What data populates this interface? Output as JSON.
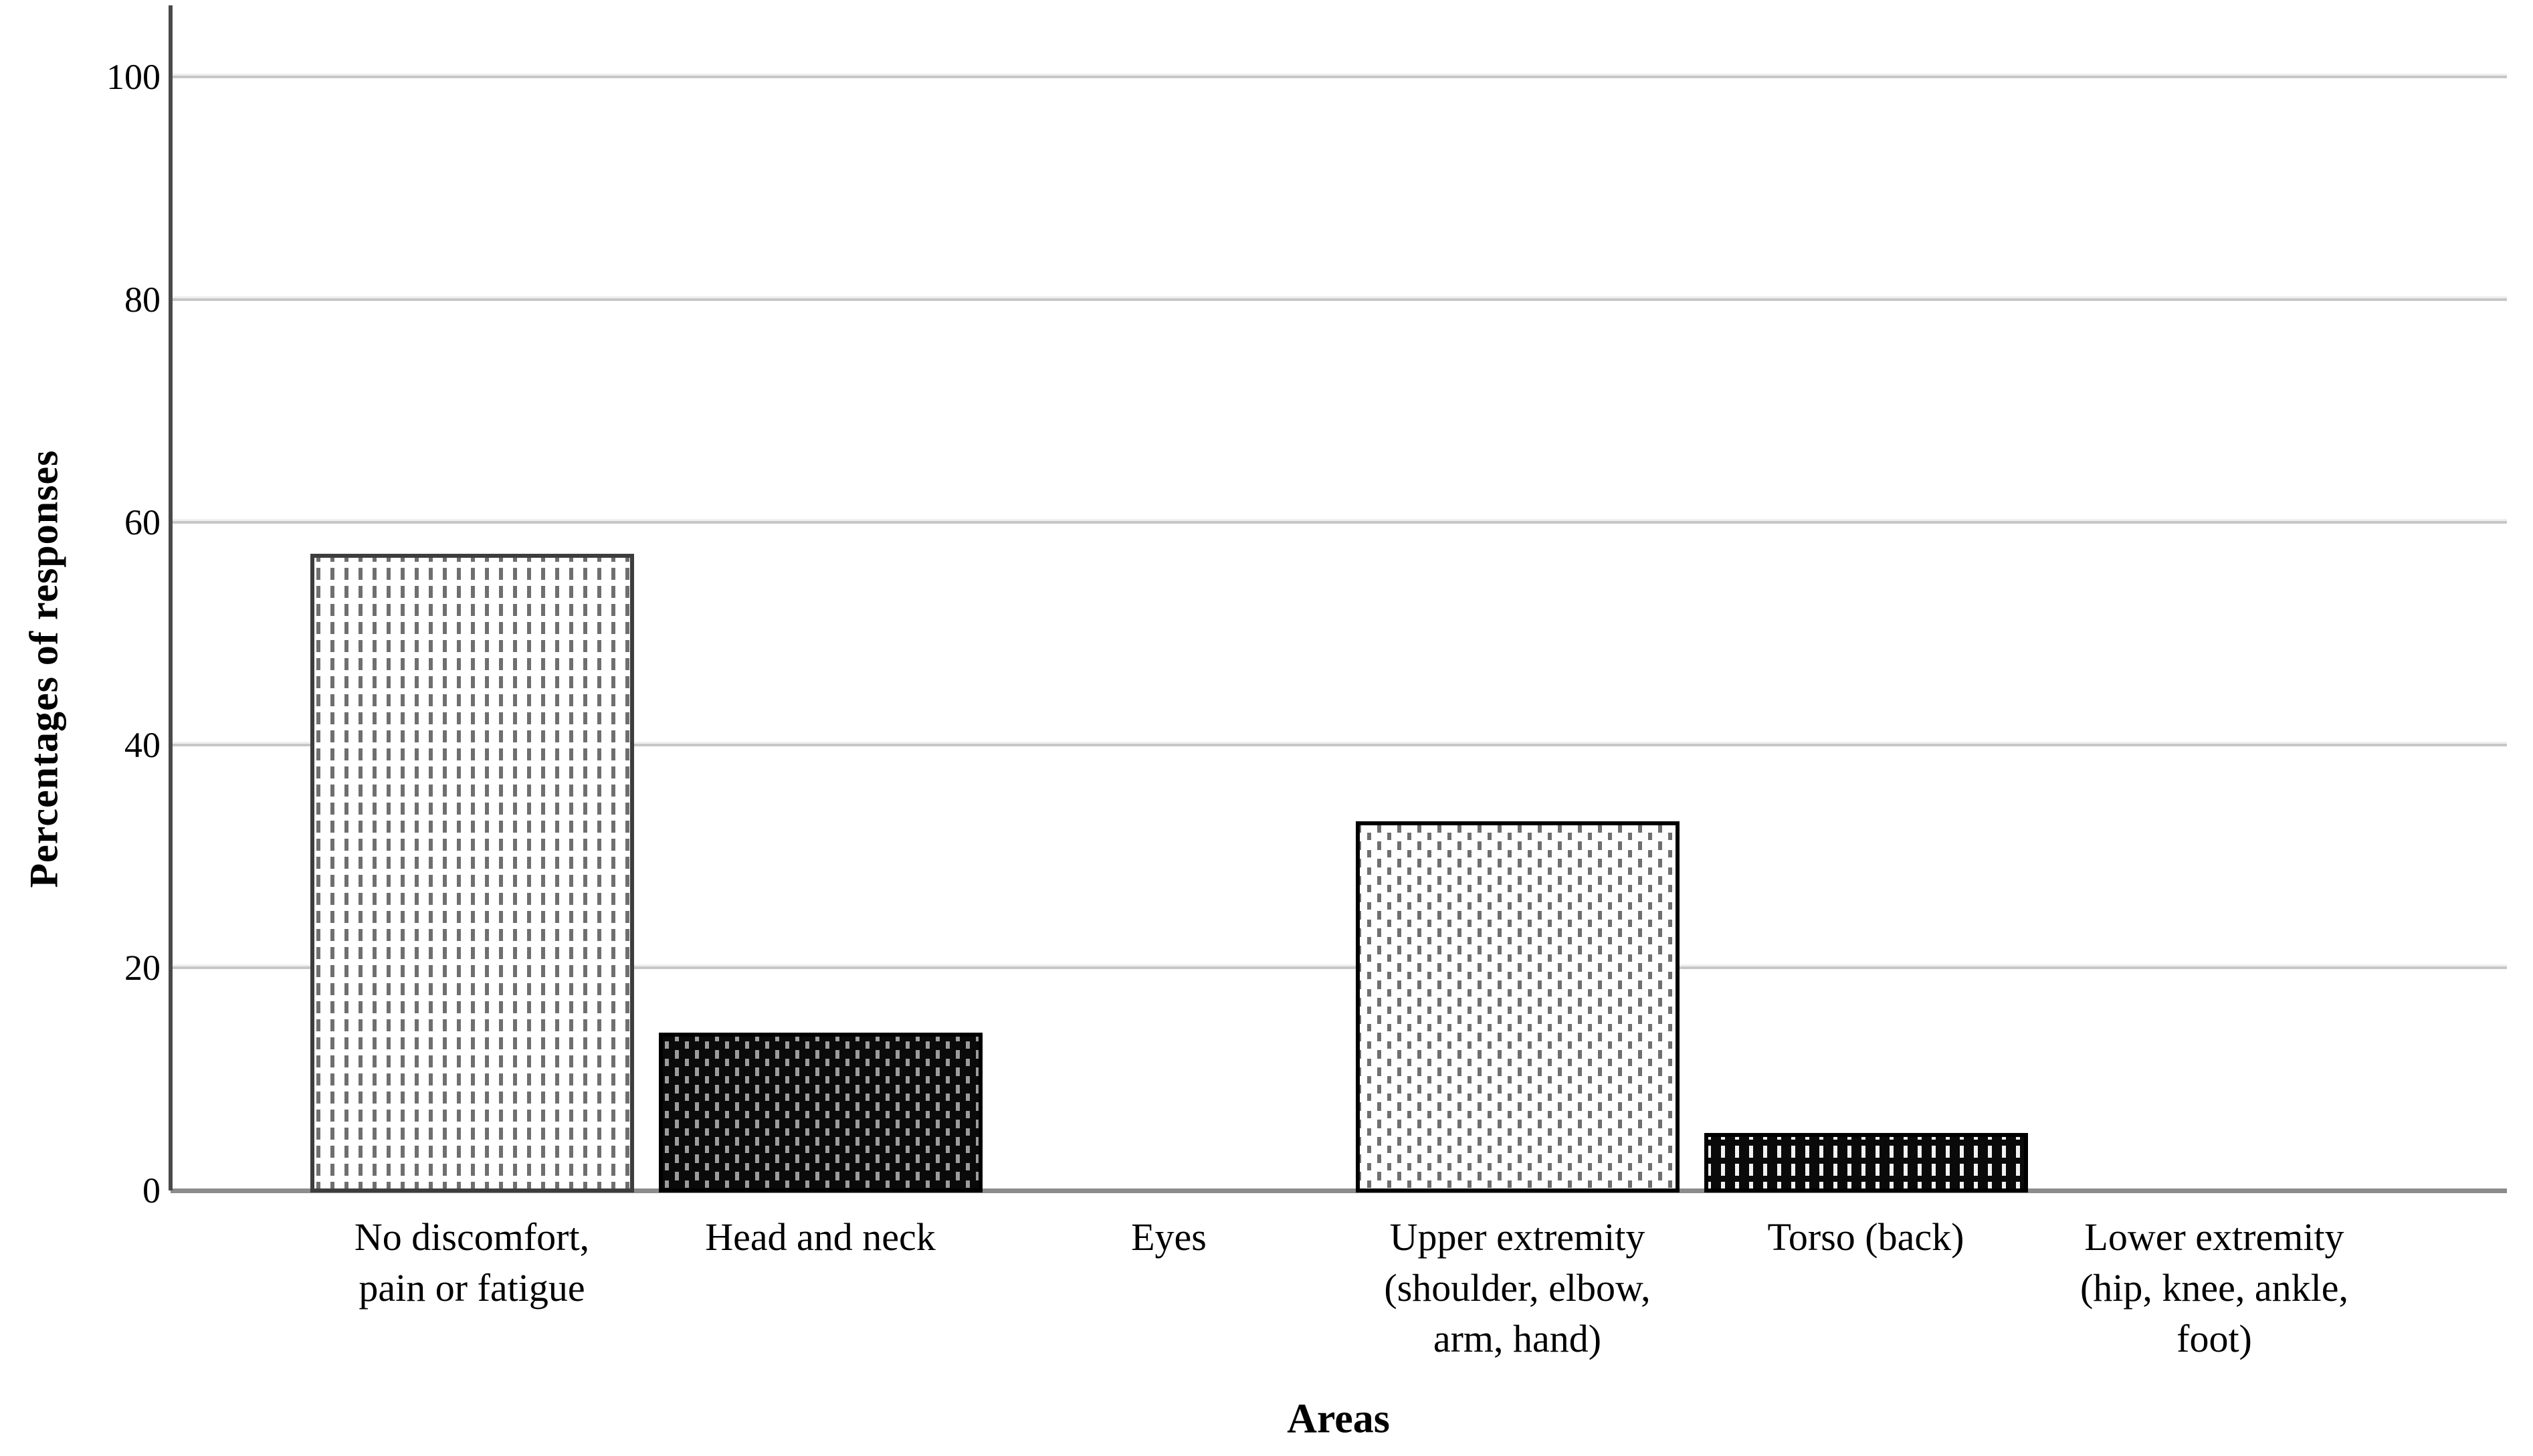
{
  "chart_data": {
    "type": "bar",
    "title": "",
    "xlabel": "Areas",
    "ylabel": "Percentages of responses",
    "categories": [
      [
        "No discomfort,",
        "pain or fatigue"
      ],
      [
        "Head and neck"
      ],
      [
        "Eyes"
      ],
      [
        "Upper extremity",
        "(shoulder, elbow,",
        "arm, hand)"
      ],
      [
        "Torso (back)"
      ],
      [
        "Lower extremity",
        "(hip, knee, ankle,",
        "foot)"
      ]
    ],
    "values": [
      57,
      14,
      0,
      33,
      5,
      0
    ],
    "yticks": [
      0,
      20,
      40,
      60,
      80,
      100
    ],
    "ylim": [
      0,
      105
    ],
    "grid": "horizontal",
    "legend_position": "none",
    "bar_styles": [
      {
        "pattern": "vertical-dashes",
        "bg": "#ffffff",
        "fg": "#6f6f6f",
        "border": "#3d3d3d"
      },
      {
        "pattern": "offset-dashes",
        "bg": "#0a0a0a",
        "fg": "#9c9c9c",
        "border": "#000000"
      },
      {
        "pattern": "none",
        "bg": "",
        "fg": "",
        "border": ""
      },
      {
        "pattern": "offset-dashes",
        "bg": "#ffffff",
        "fg": "#6f6f6f",
        "border": "#000000"
      },
      {
        "pattern": "vertical-dashes",
        "bg": "#0a0a0a",
        "fg": "#f2f2f2",
        "border": "#000000"
      },
      {
        "pattern": "none",
        "bg": "",
        "fg": "",
        "border": ""
      }
    ],
    "colors": {
      "background": "#ffffff",
      "grid": "#c7c7c7",
      "axis": "#4a4a4a",
      "baseline": "#8c8c8c",
      "text": "#000000"
    }
  }
}
